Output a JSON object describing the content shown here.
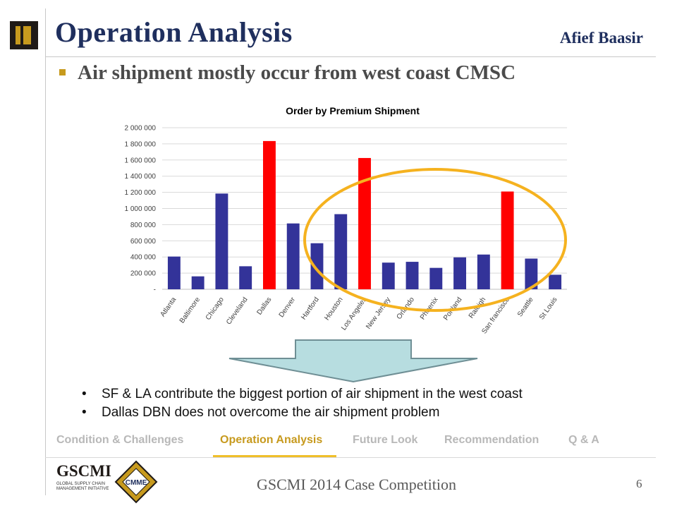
{
  "header": {
    "title": "Operation Analysis",
    "author": "Afief Baasir",
    "subtitle": "Air shipment mostly occur from west coast CMSC"
  },
  "chart_data": {
    "type": "bar",
    "title": "Order by Premium Shipment",
    "xlabel": "",
    "ylabel": "",
    "ylim": [
      0,
      2000000
    ],
    "yticks": [
      0,
      200000,
      400000,
      600000,
      800000,
      1000000,
      1200000,
      1400000,
      1600000,
      1800000,
      2000000
    ],
    "ytick_labels": [
      "-",
      "200 000",
      "400 000",
      "600 000",
      "800 000",
      "1 000 000",
      "1 200 000",
      "1 400 000",
      "1 600 000",
      "1 800 000",
      "2 000 000"
    ],
    "categories": [
      "Atlanta",
      "Baltimore",
      "Chicago",
      "Cleveland",
      "Dallas",
      "Denver",
      "Hartford",
      "Houston",
      "Los Angeles",
      "New Jersey",
      "Orlando",
      "Phoenix",
      "Portland",
      "Raleigh",
      "San francisco",
      "Seattle",
      "St Louis"
    ],
    "values": [
      405000,
      160000,
      1185000,
      285000,
      1835000,
      815000,
      570000,
      930000,
      1625000,
      330000,
      340000,
      265000,
      395000,
      430000,
      1210000,
      380000,
      180000
    ],
    "highlighted": [
      "Dallas",
      "Los Angeles",
      "San francisco"
    ],
    "colors": {
      "default": "#333399",
      "highlight": "#ff0000",
      "ellipse": "#f5b21f"
    },
    "grid": true,
    "legend": "none"
  },
  "arrow": {
    "fill": "#b7dde0",
    "stroke": "#6f8f95",
    "icon": "down-arrow"
  },
  "points": [
    "SF & LA contribute the biggest portion of air shipment in the west coast",
    "Dallas DBN does not overcome the air shipment problem"
  ],
  "nav": {
    "items": [
      "Condition & Challenges",
      "Operation Analysis",
      "Future Look",
      "Recommendation",
      "Q & A"
    ],
    "active": "Operation Analysis"
  },
  "footer": {
    "text": "GSCMI 2014 Case Competition",
    "page": "6",
    "logo_gscmi": "GSCMI",
    "logo_gscmi_sub": "GLOBAL SUPPLY CHAIN MANAGEMENT INITIATIVE",
    "logo_cmme": "CMME"
  }
}
